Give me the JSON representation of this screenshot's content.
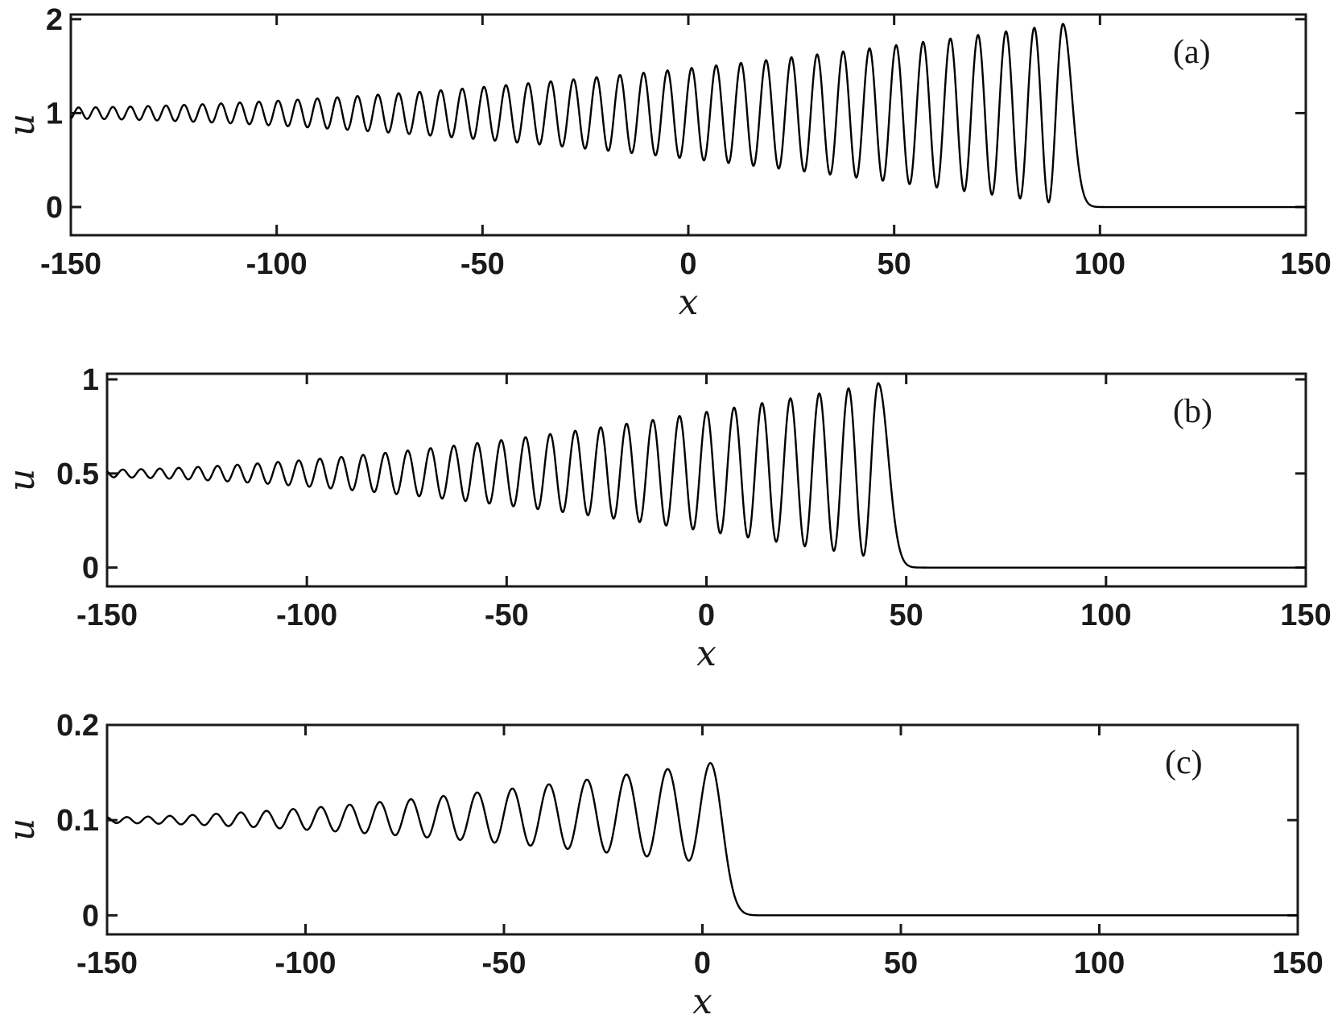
{
  "chart_data": [
    {
      "type": "line",
      "panel_label": "(a)",
      "xlabel": "x",
      "ylabel": "u",
      "xlim": [
        -150,
        150
      ],
      "ylim": [
        -0.3,
        2.05
      ],
      "xticks": [
        -150,
        -100,
        -50,
        0,
        50,
        100,
        150
      ],
      "xtick_labels": [
        "-150",
        "-100",
        "-50",
        "0",
        "50",
        "100",
        "150"
      ],
      "yticks": [
        0,
        1,
        2
      ],
      "ytick_labels": [
        "0",
        "1",
        "2"
      ],
      "grid": false,
      "wave": {
        "background_level": 1.0,
        "front_x": 91,
        "peak_at_front": 1.95,
        "trough_at_front": 0.03,
        "wavelength_far": 4.1,
        "wavelength_front": 7.0,
        "small_amplitude_far": 0.06,
        "level_after_front": 0.0,
        "decay_width": 2.2
      },
      "color": "#000000"
    },
    {
      "type": "line",
      "panel_label": "(b)",
      "xlabel": "x",
      "ylabel": "u",
      "xlim": [
        -150,
        150
      ],
      "ylim": [
        -0.1,
        1.03
      ],
      "xticks": [
        -150,
        -100,
        -50,
        0,
        50,
        100,
        150
      ],
      "xtick_labels": [
        "-150",
        "-100",
        "-50",
        "0",
        "50",
        "100",
        "150"
      ],
      "yticks": [
        0,
        0.5,
        1
      ],
      "ytick_labels": [
        "0",
        "0.5",
        "1"
      ],
      "grid": false,
      "wave": {
        "background_level": 0.5,
        "front_x": 43,
        "peak_at_front": 0.98,
        "trough_at_front": 0.05,
        "wavelength_far": 4.5,
        "wavelength_front": 7.5,
        "small_amplitude_far": 0.02,
        "level_after_front": 0.0,
        "decay_width": 2.5
      },
      "color": "#000000"
    },
    {
      "type": "line",
      "panel_label": "(c)",
      "xlabel": "x",
      "ylabel": "u",
      "xlim": [
        -150,
        150
      ],
      "ylim": [
        -0.02,
        0.2
      ],
      "xticks": [
        -150,
        -100,
        -50,
        0,
        50,
        100,
        150
      ],
      "xtick_labels": [
        "-150",
        "-100",
        "-50",
        "0",
        "50",
        "100",
        "150"
      ],
      "yticks": [
        0,
        0.1,
        0.2
      ],
      "ytick_labels": [
        "0",
        "0.1",
        "0.2"
      ],
      "grid": false,
      "wave": {
        "background_level": 0.1,
        "front_x": 2,
        "peak_at_front": 0.16,
        "trough_at_front": 0.055,
        "wavelength_far": 5.0,
        "wavelength_front": 11.0,
        "small_amplitude_far": 0.003,
        "level_after_front": 0.0,
        "decay_width": 3.0
      },
      "color": "#000000"
    }
  ]
}
